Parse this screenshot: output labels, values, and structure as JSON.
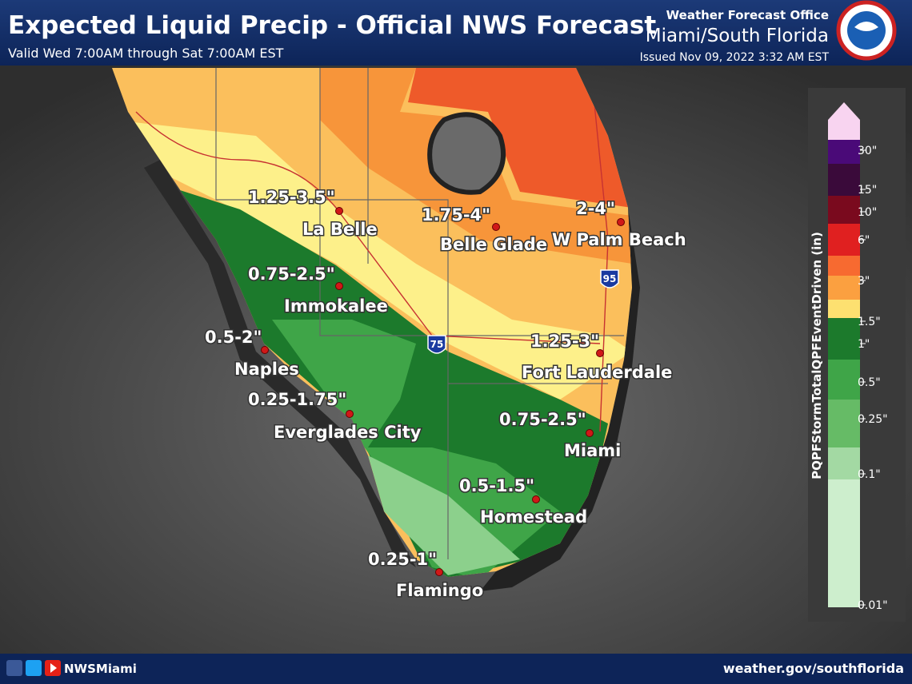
{
  "header": {
    "title": "Expected Liquid Precip - Official NWS Forecast",
    "subtitle": "Valid Wed 7:00AM through Sat 7:00AM EST",
    "office": "Weather Forecast Office",
    "office_name": "Miami/South Florida",
    "issued": "Issued Nov 09, 2022 3:32 AM EST"
  },
  "cities": [
    {
      "name": "La Belle",
      "amount": "1.25-3.5\""
    },
    {
      "name": "Belle Glade",
      "amount": "1.75-4\""
    },
    {
      "name": "W Palm Beach",
      "amount": "2-4\""
    },
    {
      "name": "Immokalee",
      "amount": "0.75-2.5\""
    },
    {
      "name": "Naples",
      "amount": "0.5-2\""
    },
    {
      "name": "Everglades City",
      "amount": "0.25-1.75\""
    },
    {
      "name": "Fort Lauderdale",
      "amount": "1.25-3\""
    },
    {
      "name": "Miami",
      "amount": "0.75-2.5\""
    },
    {
      "name": "Homestead",
      "amount": "0.5-1.5\""
    },
    {
      "name": "Flamingo",
      "amount": "0.25-1\""
    }
  ],
  "highways": [
    "95",
    "75"
  ],
  "legend": {
    "title": "PQPFStormTotalQPFEventDriven (in)",
    "labels": [
      "30\"",
      "15\"",
      "10\"",
      "6\"",
      "3\"",
      "1.5\"",
      "1\"",
      "0.5\"",
      "0.25\"",
      "0.1\"",
      "0.01\""
    ]
  },
  "footer": {
    "handle": "NWSMiami",
    "url": "weather.gov/southflorida"
  }
}
